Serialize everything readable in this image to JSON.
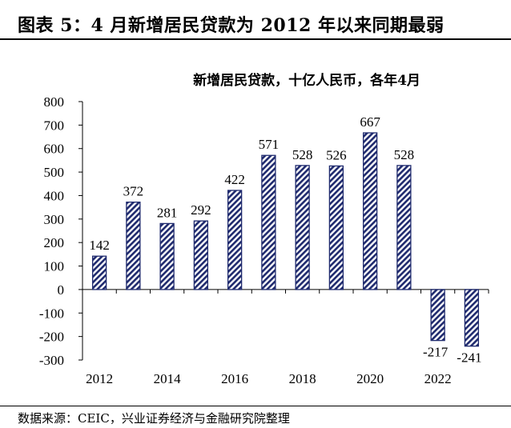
{
  "header": {
    "title": "图表 5：4 月新增居民贷款为 2012 年以来同期最弱"
  },
  "source": {
    "text": "数据来源：CEIC，兴业证券经济与金融研究院整理"
  },
  "chart_data": {
    "type": "bar",
    "title": "新增居民贷款，十亿人民币，各年4月",
    "categories": [
      "2012",
      "2013",
      "2014",
      "2015",
      "2016",
      "2017",
      "2018",
      "2019",
      "2020",
      "2021",
      "2022",
      "2023"
    ],
    "x_tick_labels": [
      "2012",
      "",
      "2014",
      "",
      "2016",
      "",
      "2018",
      "",
      "2020",
      "",
      "2022",
      ""
    ],
    "values": [
      142,
      372,
      281,
      292,
      422,
      571,
      528,
      526,
      667,
      528,
      -217,
      -241
    ],
    "data_labels": [
      "142",
      "372",
      "281",
      "292",
      "422",
      "571",
      "528",
      "526",
      "667",
      "528",
      "-217",
      "-241"
    ],
    "ylim": [
      -300,
      800
    ],
    "yticks": [
      -300,
      -200,
      -100,
      0,
      100,
      200,
      300,
      400,
      500,
      600,
      700,
      800
    ],
    "ytick_labels": [
      "-300",
      "-200",
      "-100",
      "0",
      "100",
      "200",
      "300",
      "400",
      "500",
      "600",
      "700",
      "800"
    ],
    "xlabel": "",
    "ylabel": "",
    "grid": false,
    "colors": {
      "bar_stroke": "#1f2a6e",
      "bar_fill": "#ffffff",
      "hatch": "#1f2a6e"
    }
  }
}
